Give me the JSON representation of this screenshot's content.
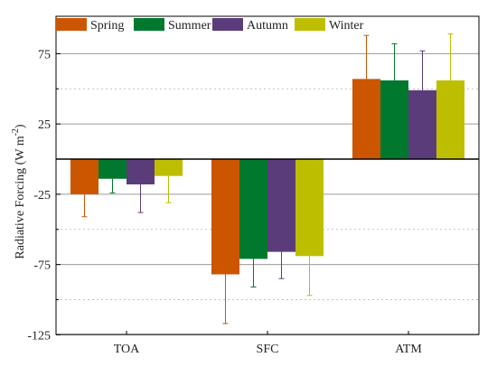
{
  "chart_data": {
    "type": "bar",
    "title": "",
    "xlabel": "",
    "ylabel": "Radiative  Forcing (W m",
    "ylabel_sup": "-2",
    "ylabel_close": ")",
    "categories": [
      "TOA",
      "SFC",
      "ATM"
    ],
    "ylim": [
      -125,
      100
    ],
    "major_ticks": [
      75,
      25,
      -25,
      -75,
      -125
    ],
    "minor_gridlines": [
      50,
      0,
      -50,
      -100
    ],
    "grid": true,
    "legend_position": "top",
    "series": [
      {
        "name": "Spring",
        "color": "#cc5500",
        "values": [
          -25,
          -82,
          57
        ],
        "errors": [
          16,
          35,
          31
        ]
      },
      {
        "name": "Summer",
        "color": "#00782d",
        "values": [
          -14,
          -71,
          56
        ],
        "errors": [
          10,
          20,
          26
        ]
      },
      {
        "name": "Autumn",
        "color": "#5b3c7a",
        "values": [
          -18,
          -66,
          49
        ],
        "errors": [
          20,
          19,
          28
        ]
      },
      {
        "name": "Winter",
        "color": "#bebe00",
        "values": [
          -12,
          -69,
          56
        ],
        "errors": [
          19,
          28,
          33
        ]
      }
    ]
  }
}
